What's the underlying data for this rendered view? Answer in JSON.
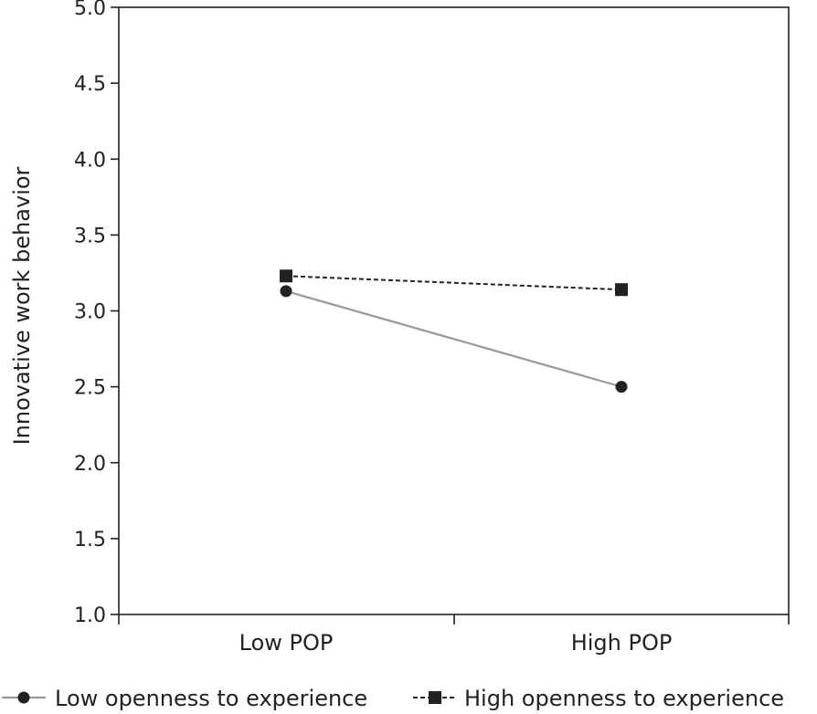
{
  "chart_data": {
    "type": "line",
    "title": "",
    "xlabel": "",
    "ylabel": "Innovative work behavior",
    "categories": [
      "Low POP",
      "High POP"
    ],
    "ylim": [
      1.0,
      5.0
    ],
    "yticks": [
      "1.0",
      "1.5",
      "2.0",
      "2.5",
      "3.0",
      "3.5",
      "4.0",
      "4.5",
      "5.0"
    ],
    "grid": false,
    "legend_position": "bottom",
    "series": [
      {
        "name": "Low openness to experience",
        "values": [
          3.13,
          2.5
        ],
        "marker": "circle",
        "line_style": "solid",
        "color": "#999999",
        "marker_color": "#222222"
      },
      {
        "name": "High openness to experience",
        "values": [
          3.23,
          3.14
        ],
        "marker": "square",
        "line_style": "dashed",
        "color": "#222222",
        "marker_color": "#222222"
      }
    ]
  }
}
